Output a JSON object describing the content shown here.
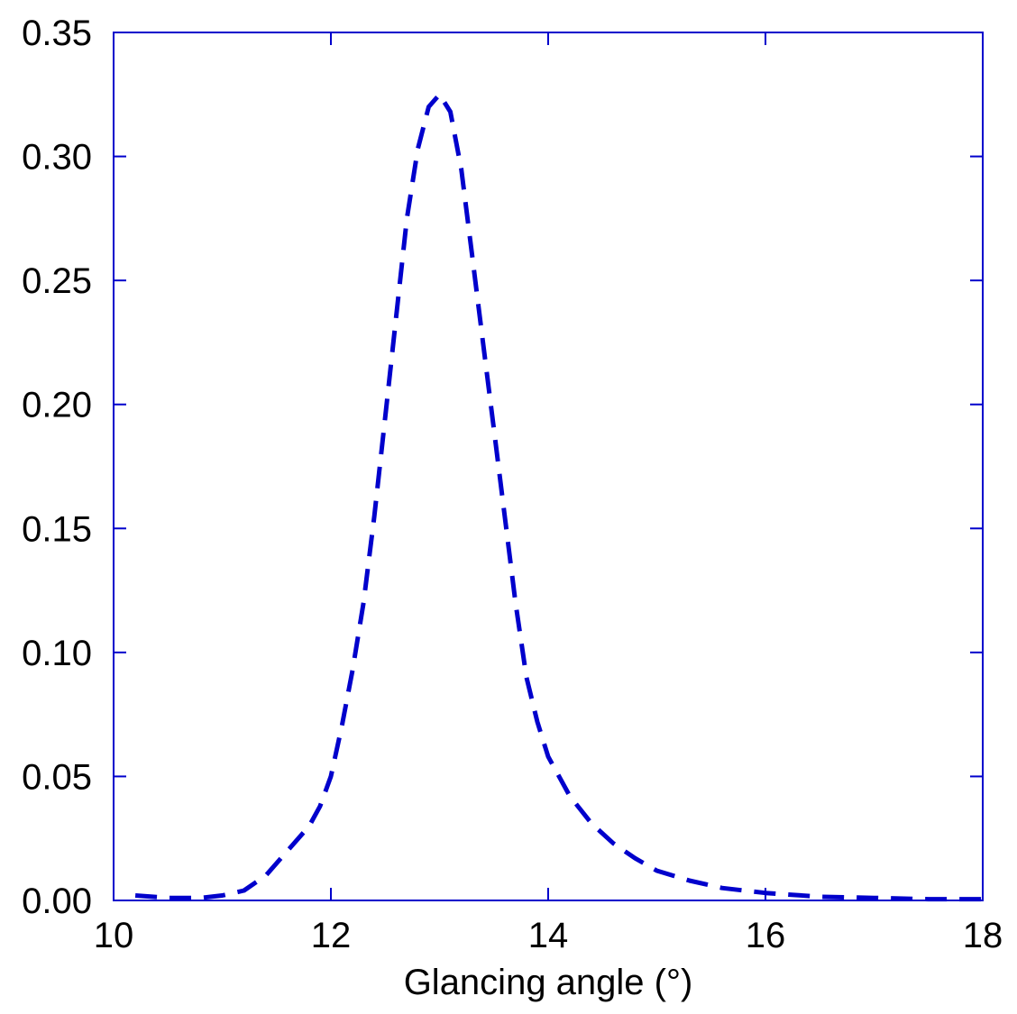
{
  "chart_data": {
    "type": "line",
    "title": "",
    "xlabel": "Glancing angle (°)",
    "ylabel": "",
    "xlim": [
      10,
      18
    ],
    "ylim": [
      0,
      0.35
    ],
    "x_ticks": [
      10,
      12,
      14,
      16,
      18
    ],
    "x_tick_labels": [
      "10",
      "12",
      "14",
      "16",
      "18"
    ],
    "y_ticks": [
      0,
      0.05,
      0.1,
      0.15,
      0.2,
      0.25,
      0.3,
      0.35
    ],
    "y_tick_labels": [
      "0.00",
      "0.05",
      "0.10",
      "0.15",
      "0.20",
      "0.25",
      "0.30",
      "0.35"
    ],
    "grid": false,
    "legend": "none",
    "colors": {
      "frame": "#0000cc",
      "series": "#0000cc"
    },
    "series": [
      {
        "line_style": "dashed",
        "x": [
          10.2,
          10.5,
          10.8,
          11.0,
          11.2,
          11.4,
          11.6,
          11.8,
          11.9,
          12.0,
          12.1,
          12.2,
          12.3,
          12.4,
          12.5,
          12.6,
          12.7,
          12.8,
          12.9,
          13.0,
          13.1,
          13.2,
          13.3,
          13.4,
          13.5,
          13.6,
          13.7,
          13.8,
          13.9,
          14.0,
          14.2,
          14.4,
          14.6,
          14.8,
          15.0,
          15.3,
          15.6,
          16.0,
          16.5,
          17.0,
          17.5,
          18.0
        ],
        "y": [
          0.002,
          0.001,
          0.001,
          0.002,
          0.004,
          0.01,
          0.02,
          0.03,
          0.038,
          0.05,
          0.07,
          0.093,
          0.12,
          0.155,
          0.195,
          0.235,
          0.275,
          0.303,
          0.32,
          0.325,
          0.318,
          0.295,
          0.26,
          0.225,
          0.19,
          0.155,
          0.12,
          0.09,
          0.072,
          0.058,
          0.042,
          0.031,
          0.023,
          0.017,
          0.012,
          0.008,
          0.005,
          0.003,
          0.0015,
          0.001,
          0.0005,
          0.0005
        ]
      }
    ]
  }
}
